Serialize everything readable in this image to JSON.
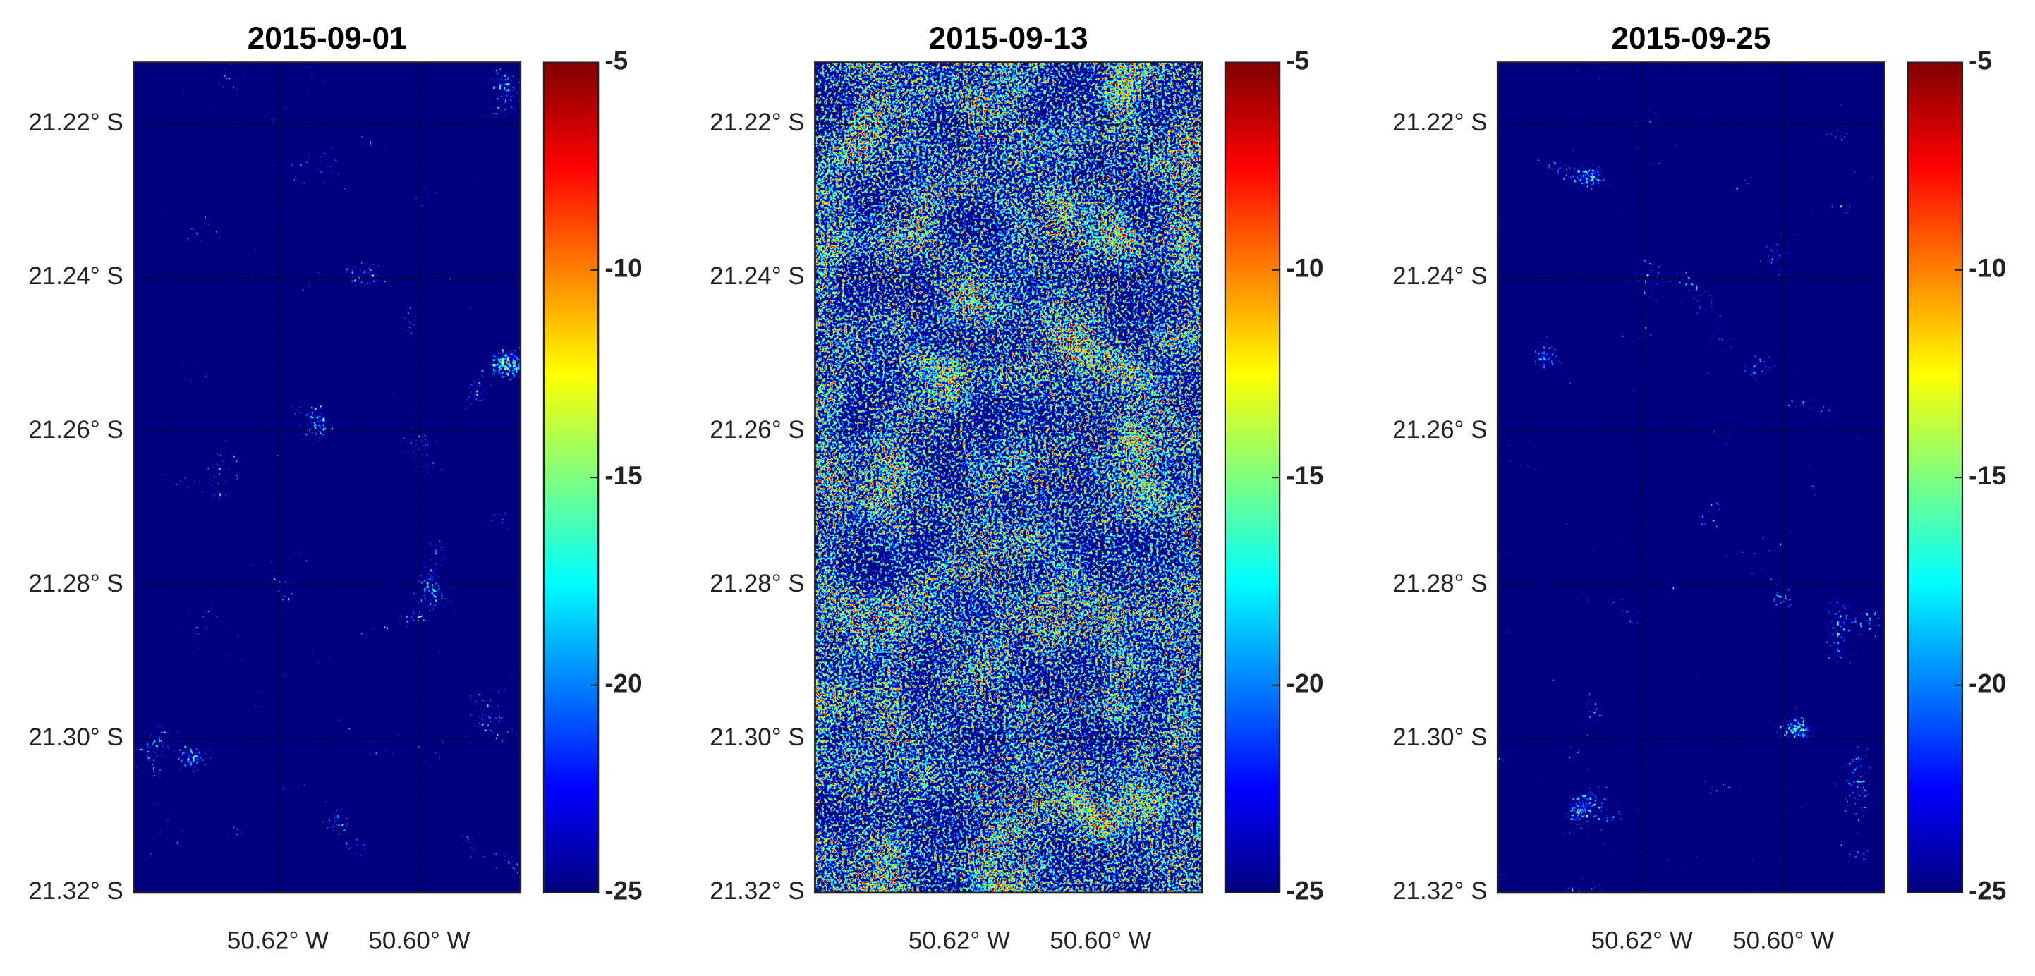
{
  "chart_data": [
    {
      "type": "map",
      "title": "2015-09-01",
      "xlim": [
        -50.6404,
        -50.5857
      ],
      "ylim": [
        -21.32,
        -21.212
      ],
      "xticks": [
        {
          "value": -50.62,
          "label": "50.62° W"
        },
        {
          "value": -50.6,
          "label": "50.60° W"
        }
      ],
      "yticks": [
        {
          "value": -21.22,
          "label": "21.22° S"
        },
        {
          "value": -21.24,
          "label": "21.24° S"
        },
        {
          "value": -21.26,
          "label": "21.26° S"
        },
        {
          "value": -21.28,
          "label": "21.28° S"
        },
        {
          "value": -21.3,
          "label": "21.30° S"
        },
        {
          "value": -21.32,
          "label": "21.32° S"
        }
      ],
      "grid": true,
      "colormap": "jet",
      "colorbar": {
        "clim": [
          -25,
          -5
        ],
        "ticks": [
          -5,
          -10,
          -15,
          -20,
          -25
        ]
      }
    },
    {
      "type": "map",
      "title": "2015-09-13",
      "xlim": [
        -50.6404,
        -50.5857
      ],
      "ylim": [
        -21.32,
        -21.212
      ],
      "xticks": [
        {
          "value": -50.62,
          "label": "50.62° W"
        },
        {
          "value": -50.6,
          "label": "50.60° W"
        }
      ],
      "yticks": [
        {
          "value": -21.22,
          "label": "21.22° S"
        },
        {
          "value": -21.24,
          "label": "21.24° S"
        },
        {
          "value": -21.26,
          "label": "21.26° S"
        },
        {
          "value": -21.28,
          "label": "21.28° S"
        },
        {
          "value": -21.3,
          "label": "21.30° S"
        },
        {
          "value": -21.32,
          "label": "21.32° S"
        }
      ],
      "grid": true,
      "colormap": "jet",
      "colorbar": {
        "clim": [
          -25,
          -5
        ],
        "ticks": [
          -5,
          -10,
          -15,
          -20,
          -25
        ]
      }
    },
    {
      "type": "map",
      "title": "2015-09-25",
      "xlim": [
        -50.6404,
        -50.5857
      ],
      "ylim": [
        -21.32,
        -21.212
      ],
      "xticks": [
        {
          "value": -50.62,
          "label": "50.62° W"
        },
        {
          "value": -50.6,
          "label": "50.60° W"
        }
      ],
      "yticks": [
        {
          "value": -21.22,
          "label": "21.22° S"
        },
        {
          "value": -21.24,
          "label": "21.24° S"
        },
        {
          "value": -21.26,
          "label": "21.26° S"
        },
        {
          "value": -21.28,
          "label": "21.28° S"
        },
        {
          "value": -21.3,
          "label": "21.30° S"
        },
        {
          "value": -21.32,
          "label": "21.32° S"
        }
      ],
      "grid": true,
      "colormap": "jet",
      "colorbar": {
        "clim": [
          -25,
          -5
        ],
        "ticks": [
          -5,
          -10,
          -15,
          -20,
          -25
        ]
      }
    }
  ]
}
